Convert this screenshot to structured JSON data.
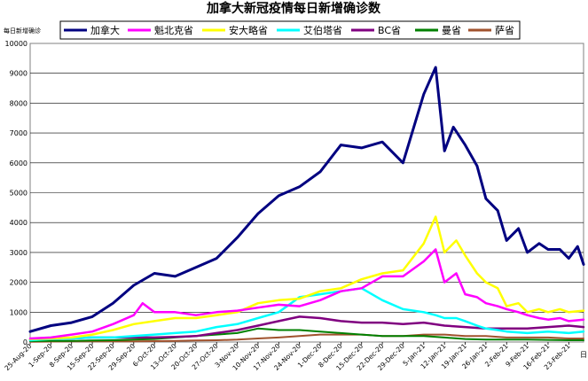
{
  "chart_data": {
    "type": "line",
    "title": "加拿大新冠疫情每日新增确诊数",
    "ylabel": "每日新增确诊",
    "xlabel": "日",
    "ylim": [
      0,
      10000
    ],
    "yticks": [
      0,
      1000,
      2000,
      3000,
      4000,
      5000,
      6000,
      7000,
      8000,
      9000,
      10000
    ],
    "x_start": "2020-08-25",
    "x_end": "2021-02-28",
    "xticks": [
      "25-Aug-20",
      "1-Sep-20",
      "8-Sep-20",
      "15-Sep-20",
      "22-Sep-20",
      "29-Sep-20",
      "6-Oct-20",
      "13-Oct-20",
      "20-Oct-20",
      "27-Oct-20",
      "3-Nov-20",
      "10-Nov-20",
      "17-Nov-20",
      "24-Nov-20",
      "1-Dec-20",
      "8-Dec-20",
      "15-Dec-20",
      "22-Dec-20",
      "29-Dec-20",
      "5-Jan-21",
      "12-Jan-21",
      "19-Jan-21",
      "26-Jan-21",
      "2-Feb-21",
      "9-Feb-21",
      "16-Feb-21",
      "23-Feb-21"
    ],
    "grid": "horizontal",
    "legend_position": "top",
    "series": [
      {
        "name": "加拿大",
        "color": "#000080",
        "width": 3,
        "points": [
          [
            "2020-08-25",
            350
          ],
          [
            "2020-09-01",
            550
          ],
          [
            "2020-09-08",
            650
          ],
          [
            "2020-09-15",
            850
          ],
          [
            "2020-09-22",
            1300
          ],
          [
            "2020-09-29",
            1900
          ],
          [
            "2020-10-06",
            2300
          ],
          [
            "2020-10-13",
            2200
          ],
          [
            "2020-10-20",
            2500
          ],
          [
            "2020-10-27",
            2800
          ],
          [
            "2020-11-03",
            3500
          ],
          [
            "2020-11-10",
            4300
          ],
          [
            "2020-11-17",
            4900
          ],
          [
            "2020-11-24",
            5200
          ],
          [
            "2020-12-01",
            5700
          ],
          [
            "2020-12-08",
            6600
          ],
          [
            "2020-12-15",
            6500
          ],
          [
            "2020-12-22",
            6700
          ],
          [
            "2020-12-29",
            6000
          ],
          [
            "2021-01-05",
            8300
          ],
          [
            "2021-01-09",
            9200
          ],
          [
            "2021-01-12",
            6400
          ],
          [
            "2021-01-15",
            7200
          ],
          [
            "2021-01-19",
            6600
          ],
          [
            "2021-01-23",
            5900
          ],
          [
            "2021-01-26",
            4800
          ],
          [
            "2021-01-30",
            4400
          ],
          [
            "2021-02-02",
            3400
          ],
          [
            "2021-02-06",
            3800
          ],
          [
            "2021-02-09",
            3000
          ],
          [
            "2021-02-13",
            3300
          ],
          [
            "2021-02-16",
            3100
          ],
          [
            "2021-02-20",
            3100
          ],
          [
            "2021-02-23",
            2800
          ],
          [
            "2021-02-26",
            3200
          ],
          [
            "2021-02-28",
            2600
          ]
        ]
      },
      {
        "name": "魁北克省",
        "color": "#ff00ff",
        "width": 2.5,
        "points": [
          [
            "2020-08-25",
            120
          ],
          [
            "2020-09-01",
            150
          ],
          [
            "2020-09-08",
            250
          ],
          [
            "2020-09-15",
            350
          ],
          [
            "2020-09-22",
            600
          ],
          [
            "2020-09-29",
            900
          ],
          [
            "2020-10-02",
            1300
          ],
          [
            "2020-10-06",
            1000
          ],
          [
            "2020-10-13",
            1000
          ],
          [
            "2020-10-20",
            900
          ],
          [
            "2020-10-27",
            1000
          ],
          [
            "2020-11-03",
            1050
          ],
          [
            "2020-11-10",
            1150
          ],
          [
            "2020-11-17",
            1250
          ],
          [
            "2020-11-24",
            1200
          ],
          [
            "2020-12-01",
            1400
          ],
          [
            "2020-12-08",
            1700
          ],
          [
            "2020-12-15",
            1800
          ],
          [
            "2020-12-22",
            2200
          ],
          [
            "2020-12-29",
            2200
          ],
          [
            "2021-01-05",
            2700
          ],
          [
            "2021-01-09",
            3100
          ],
          [
            "2021-01-12",
            2000
          ],
          [
            "2021-01-16",
            2300
          ],
          [
            "2021-01-19",
            1600
          ],
          [
            "2021-01-23",
            1500
          ],
          [
            "2021-01-26",
            1300
          ],
          [
            "2021-01-30",
            1200
          ],
          [
            "2021-02-02",
            1100
          ],
          [
            "2021-02-06",
            1000
          ],
          [
            "2021-02-09",
            900
          ],
          [
            "2021-02-13",
            800
          ],
          [
            "2021-02-16",
            750
          ],
          [
            "2021-02-20",
            800
          ],
          [
            "2021-02-23",
            700
          ],
          [
            "2021-02-28",
            750
          ]
        ]
      },
      {
        "name": "安大略省",
        "color": "#ffff00",
        "width": 2.5,
        "points": [
          [
            "2020-08-25",
            100
          ],
          [
            "2020-09-01",
            120
          ],
          [
            "2020-09-08",
            150
          ],
          [
            "2020-09-15",
            250
          ],
          [
            "2020-09-22",
            400
          ],
          [
            "2020-09-29",
            600
          ],
          [
            "2020-10-06",
            700
          ],
          [
            "2020-10-13",
            800
          ],
          [
            "2020-10-20",
            800
          ],
          [
            "2020-10-27",
            900
          ],
          [
            "2020-11-03",
            1000
          ],
          [
            "2020-11-10",
            1300
          ],
          [
            "2020-11-17",
            1400
          ],
          [
            "2020-11-24",
            1450
          ],
          [
            "2020-12-01",
            1700
          ],
          [
            "2020-12-08",
            1800
          ],
          [
            "2020-12-15",
            2100
          ],
          [
            "2020-12-22",
            2300
          ],
          [
            "2020-12-29",
            2400
          ],
          [
            "2021-01-05",
            3300
          ],
          [
            "2021-01-09",
            4200
          ],
          [
            "2021-01-12",
            3000
          ],
          [
            "2021-01-16",
            3400
          ],
          [
            "2021-01-19",
            2900
          ],
          [
            "2021-01-23",
            2300
          ],
          [
            "2021-01-26",
            2000
          ],
          [
            "2021-01-30",
            1800
          ],
          [
            "2021-02-02",
            1200
          ],
          [
            "2021-02-06",
            1300
          ],
          [
            "2021-02-09",
            1000
          ],
          [
            "2021-02-13",
            1100
          ],
          [
            "2021-02-16",
            1000
          ],
          [
            "2021-02-20",
            1100
          ],
          [
            "2021-02-23",
            1000
          ],
          [
            "2021-02-28",
            1050
          ]
        ]
      },
      {
        "name": "艾伯塔省",
        "color": "#00ffff",
        "width": 2.5,
        "points": [
          [
            "2020-08-25",
            60
          ],
          [
            "2020-09-01",
            100
          ],
          [
            "2020-09-08",
            120
          ],
          [
            "2020-09-15",
            150
          ],
          [
            "2020-09-22",
            150
          ],
          [
            "2020-09-29",
            200
          ],
          [
            "2020-10-06",
            250
          ],
          [
            "2020-10-13",
            300
          ],
          [
            "2020-10-20",
            350
          ],
          [
            "2020-10-27",
            500
          ],
          [
            "2020-11-03",
            600
          ],
          [
            "2020-11-10",
            800
          ],
          [
            "2020-11-17",
            1000
          ],
          [
            "2020-11-24",
            1500
          ],
          [
            "2020-12-01",
            1600
          ],
          [
            "2020-12-08",
            1700
          ],
          [
            "2020-12-15",
            1800
          ],
          [
            "2020-12-22",
            1400
          ],
          [
            "2020-12-29",
            1100
          ],
          [
            "2021-01-05",
            1000
          ],
          [
            "2021-01-09",
            900
          ],
          [
            "2021-01-12",
            800
          ],
          [
            "2021-01-16",
            800
          ],
          [
            "2021-01-19",
            700
          ],
          [
            "2021-01-23",
            550
          ],
          [
            "2021-01-26",
            450
          ],
          [
            "2021-01-30",
            400
          ],
          [
            "2021-02-02",
            350
          ],
          [
            "2021-02-09",
            300
          ],
          [
            "2021-02-16",
            350
          ],
          [
            "2021-02-23",
            300
          ],
          [
            "2021-02-28",
            350
          ]
        ]
      },
      {
        "name": "BC省",
        "color": "#800080",
        "width": 2.5,
        "points": [
          [
            "2020-08-25",
            80
          ],
          [
            "2020-09-01",
            100
          ],
          [
            "2020-09-08",
            120
          ],
          [
            "2020-09-15",
            150
          ],
          [
            "2020-09-22",
            150
          ],
          [
            "2020-09-29",
            150
          ],
          [
            "2020-10-06",
            150
          ],
          [
            "2020-10-13",
            170
          ],
          [
            "2020-10-20",
            200
          ],
          [
            "2020-10-27",
            300
          ],
          [
            "2020-11-03",
            400
          ],
          [
            "2020-11-10",
            550
          ],
          [
            "2020-11-17",
            700
          ],
          [
            "2020-11-24",
            850
          ],
          [
            "2020-12-01",
            800
          ],
          [
            "2020-12-08",
            700
          ],
          [
            "2020-12-15",
            650
          ],
          [
            "2020-12-22",
            650
          ],
          [
            "2020-12-29",
            600
          ],
          [
            "2021-01-05",
            650
          ],
          [
            "2021-01-12",
            550
          ],
          [
            "2021-01-19",
            500
          ],
          [
            "2021-01-26",
            450
          ],
          [
            "2021-02-02",
            450
          ],
          [
            "2021-02-09",
            450
          ],
          [
            "2021-02-16",
            500
          ],
          [
            "2021-02-23",
            550
          ],
          [
            "2021-02-28",
            500
          ]
        ]
      },
      {
        "name": "曼省",
        "color": "#008000",
        "width": 2,
        "points": [
          [
            "2020-08-25",
            30
          ],
          [
            "2020-09-01",
            40
          ],
          [
            "2020-09-08",
            40
          ],
          [
            "2020-09-15",
            50
          ],
          [
            "2020-09-22",
            60
          ],
          [
            "2020-09-29",
            80
          ],
          [
            "2020-10-06",
            100
          ],
          [
            "2020-10-13",
            150
          ],
          [
            "2020-10-20",
            200
          ],
          [
            "2020-10-27",
            250
          ],
          [
            "2020-11-03",
            300
          ],
          [
            "2020-11-10",
            450
          ],
          [
            "2020-11-17",
            400
          ],
          [
            "2020-11-24",
            400
          ],
          [
            "2020-12-01",
            350
          ],
          [
            "2020-12-08",
            300
          ],
          [
            "2020-12-15",
            250
          ],
          [
            "2020-12-22",
            200
          ],
          [
            "2020-12-29",
            200
          ],
          [
            "2021-01-05",
            200
          ],
          [
            "2021-01-12",
            150
          ],
          [
            "2021-01-19",
            100
          ],
          [
            "2021-01-26",
            80
          ],
          [
            "2021-02-02",
            80
          ],
          [
            "2021-02-09",
            80
          ],
          [
            "2021-02-16",
            70
          ],
          [
            "2021-02-23",
            60
          ],
          [
            "2021-02-28",
            60
          ]
        ]
      },
      {
        "name": "萨省",
        "color": "#a0522d",
        "width": 2,
        "points": [
          [
            "2020-08-25",
            10
          ],
          [
            "2020-09-01",
            15
          ],
          [
            "2020-09-08",
            20
          ],
          [
            "2020-09-15",
            20
          ],
          [
            "2020-09-22",
            20
          ],
          [
            "2020-09-29",
            25
          ],
          [
            "2020-10-06",
            30
          ],
          [
            "2020-10-13",
            40
          ],
          [
            "2020-10-20",
            50
          ],
          [
            "2020-10-27",
            60
          ],
          [
            "2020-11-03",
            80
          ],
          [
            "2020-11-10",
            120
          ],
          [
            "2020-11-17",
            150
          ],
          [
            "2020-11-24",
            200
          ],
          [
            "2020-12-01",
            250
          ],
          [
            "2020-12-08",
            250
          ],
          [
            "2020-12-15",
            250
          ],
          [
            "2020-12-22",
            200
          ],
          [
            "2020-12-29",
            200
          ],
          [
            "2021-01-05",
            250
          ],
          [
            "2021-01-12",
            250
          ],
          [
            "2021-01-19",
            200
          ],
          [
            "2021-01-26",
            200
          ],
          [
            "2021-02-02",
            150
          ],
          [
            "2021-02-09",
            150
          ],
          [
            "2021-02-16",
            150
          ],
          [
            "2021-02-23",
            120
          ],
          [
            "2021-02-28",
            120
          ]
        ]
      }
    ]
  }
}
